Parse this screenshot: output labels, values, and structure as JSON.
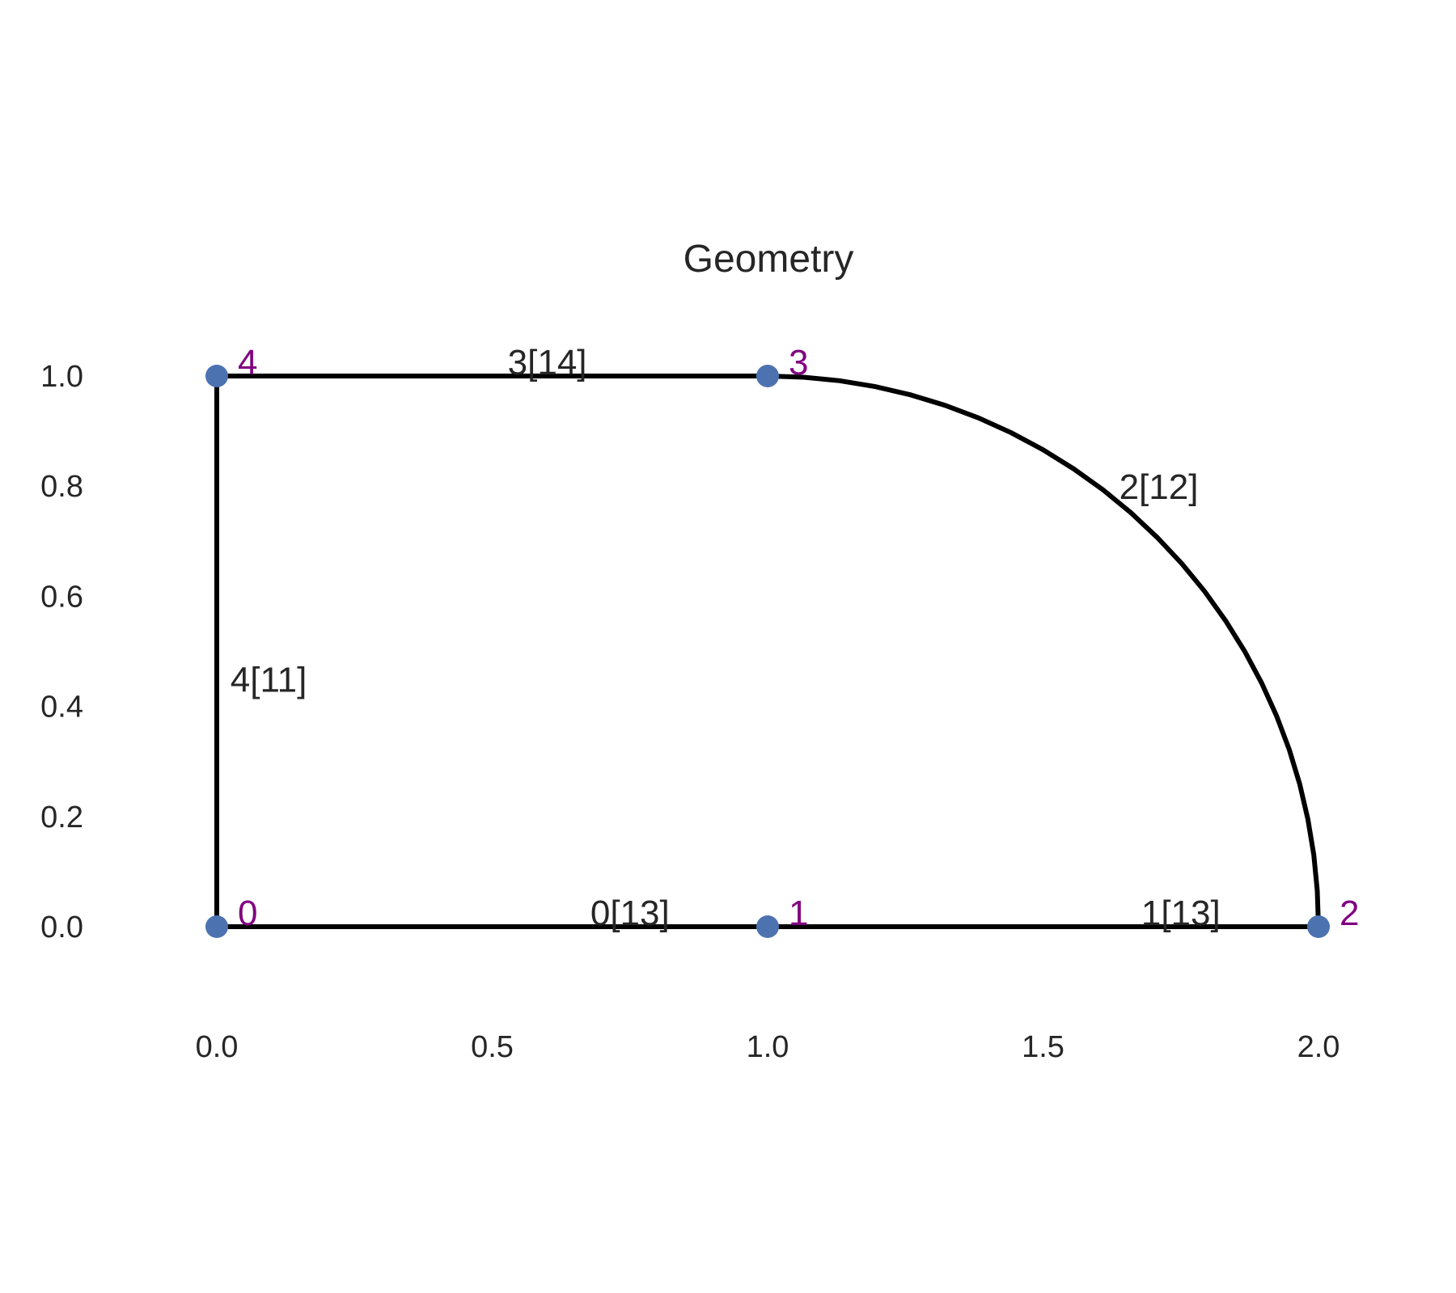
{
  "title": "Geometry",
  "colors": {
    "edge": "#000000",
    "point": "#4c72b0",
    "point_label": "#800080",
    "text": "#262626",
    "background": "#ffffff"
  },
  "chart_data": {
    "type": "geometry",
    "xlim": [
      -0.2,
      2.2
    ],
    "ylim": [
      -0.2,
      1.1
    ],
    "x_ticks": [
      "0.0",
      "0.5",
      "1.0",
      "1.5",
      "2.0"
    ],
    "y_ticks": [
      "0.0",
      "0.2",
      "0.4",
      "0.6",
      "0.8",
      "1.0"
    ],
    "grid": false,
    "points": [
      {
        "label": "0",
        "x": 0.0,
        "y": 0.0
      },
      {
        "label": "1",
        "x": 1.0,
        "y": 0.0
      },
      {
        "label": "2",
        "x": 2.0,
        "y": 0.0
      },
      {
        "label": "3",
        "x": 1.0,
        "y": 1.0
      },
      {
        "label": "4",
        "x": 0.0,
        "y": 1.0
      }
    ],
    "edges": [
      {
        "label": "0[13]",
        "type": "line",
        "from": 0,
        "to": 1,
        "label_at": [
          0.75,
          0.0
        ]
      },
      {
        "label": "1[13]",
        "type": "line",
        "from": 1,
        "to": 2,
        "label_at": [
          1.75,
          0.0
        ]
      },
      {
        "label": "2[12]",
        "type": "arc",
        "from": 2,
        "to": 3,
        "center": [
          1.0,
          0.0
        ],
        "label_at": [
          1.71,
          0.8
        ]
      },
      {
        "label": "3[14]",
        "type": "line",
        "from": 3,
        "to": 4,
        "label_at": [
          0.6,
          1.0
        ]
      },
      {
        "label": "4[11]",
        "type": "line",
        "from": 4,
        "to": 0,
        "label_at": [
          0.1,
          0.4
        ]
      }
    ]
  }
}
